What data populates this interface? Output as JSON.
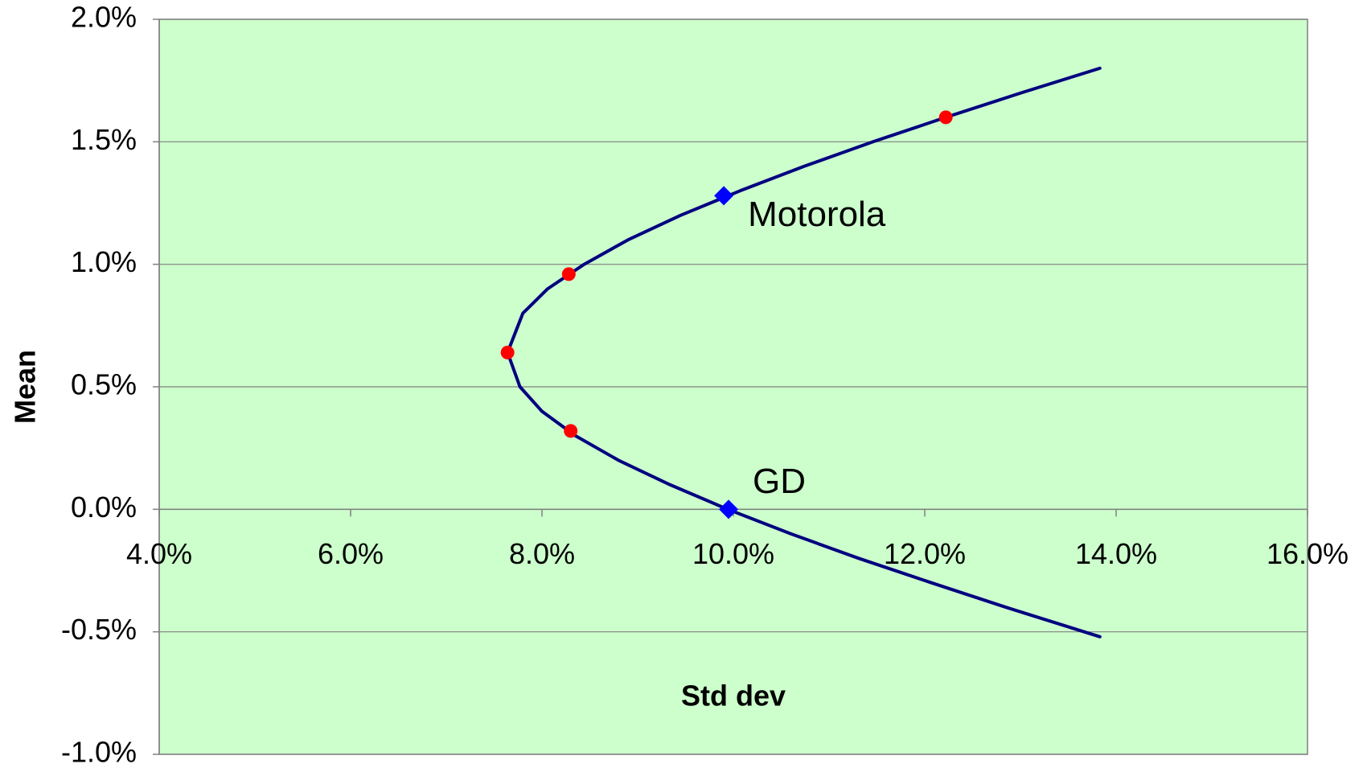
{
  "chart_data": {
    "type": "scatter",
    "x_label": "Std dev",
    "y_label": "Mean",
    "xlim": [
      4.0,
      16.0
    ],
    "ylim": [
      -1.0,
      2.0
    ],
    "xticks": [
      {
        "value": 4.0,
        "label": "4.0%"
      },
      {
        "value": 6.0,
        "label": "6.0%"
      },
      {
        "value": 8.0,
        "label": "8.0%"
      },
      {
        "value": 10.0,
        "label": "10.0%"
      },
      {
        "value": 12.0,
        "label": "12.0%"
      },
      {
        "value": 14.0,
        "label": "14.0%"
      },
      {
        "value": 16.0,
        "label": "16.0%"
      }
    ],
    "yticks": [
      {
        "value": -1.0,
        "label": "-1.0%"
      },
      {
        "value": -0.5,
        "label": "-0.5%"
      },
      {
        "value": 0,
        "label": "0.0%"
      },
      {
        "value": 0.5,
        "label": "0.5%"
      },
      {
        "value": 1.0,
        "label": "1.0%"
      },
      {
        "value": 1.5,
        "label": "1.5%"
      },
      {
        "value": 2.0,
        "label": "2.0%"
      }
    ],
    "grid": true,
    "background": "#ccffcc",
    "series": [
      {
        "mode": "line",
        "color": "#000080",
        "x": [
          13.83,
          12.85,
          12.07,
          11.31,
          10.6,
          9.94,
          9.34,
          8.8,
          8.35,
          8.0,
          7.77,
          7.64,
          7.8,
          8.06,
          8.44,
          8.9,
          9.45,
          10.07,
          10.74,
          11.46,
          12.22,
          13.01,
          13.83
        ],
        "values": [
          -0.52,
          -0.4,
          -0.3,
          -0.2,
          -0.1,
          0,
          0.1,
          0.2,
          0.3,
          0.4,
          0.5,
          0.64,
          0.8,
          0.9,
          1.0,
          1.1,
          1.2,
          1.3,
          1.4,
          1.5,
          1.6,
          1.7,
          1.8
        ]
      },
      {
        "mode": "marker",
        "marker": "circle",
        "color": "#ff0000",
        "x": [
          7.64,
          8.28,
          8.3,
          12.22
        ],
        "values": [
          0.64,
          0.96,
          0.32,
          1.6
        ]
      },
      {
        "mode": "marker",
        "marker": "diamond",
        "color": "#0000ff",
        "x": [
          9.9,
          9.95
        ],
        "values": [
          1.28,
          0
        ],
        "labels": [
          "Motorola",
          "GD"
        ]
      }
    ]
  }
}
